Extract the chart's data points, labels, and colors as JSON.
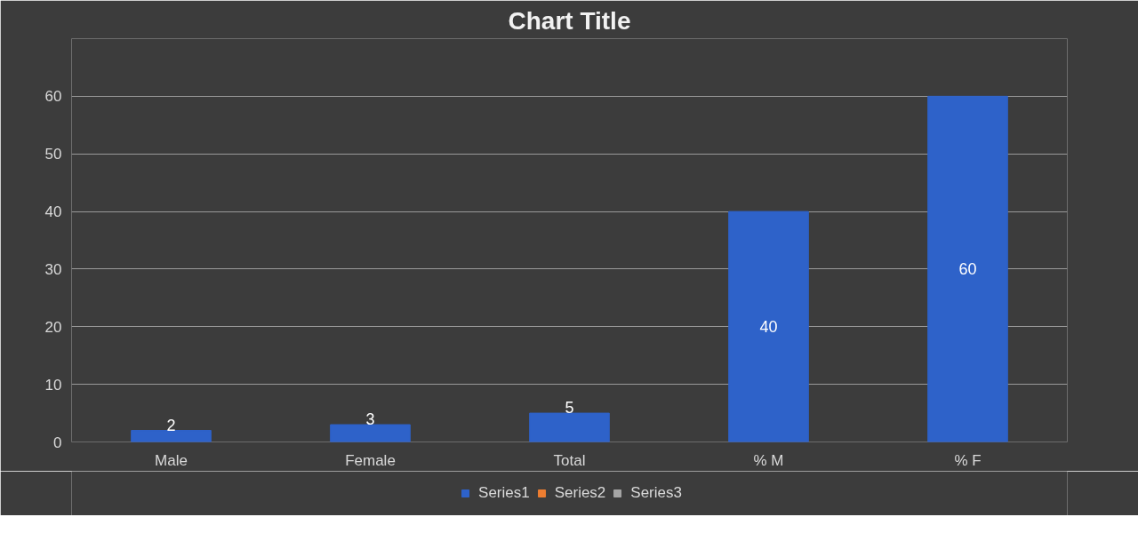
{
  "chart_data": {
    "type": "bar",
    "title": "Chart Title",
    "categories": [
      "Male",
      "Female",
      "Total",
      "% M",
      "% F"
    ],
    "series": [
      {
        "name": "Series1",
        "color": "#2e62c9",
        "values": [
          2,
          3,
          5,
          40,
          60
        ]
      },
      {
        "name": "Series2",
        "color": "#ed7d31",
        "values": [
          null,
          null,
          null,
          null,
          null
        ]
      },
      {
        "name": "Series3",
        "color": "#a5a5a5",
        "values": [
          null,
          null,
          null,
          null,
          null
        ]
      }
    ],
    "ylim": [
      0,
      70
    ],
    "yticks": [
      0,
      10,
      20,
      30,
      40,
      50,
      60,
      {
        "value": 70,
        "label": null
      }
    ],
    "grid": "y",
    "legend": "bottom",
    "data_labels": true
  }
}
